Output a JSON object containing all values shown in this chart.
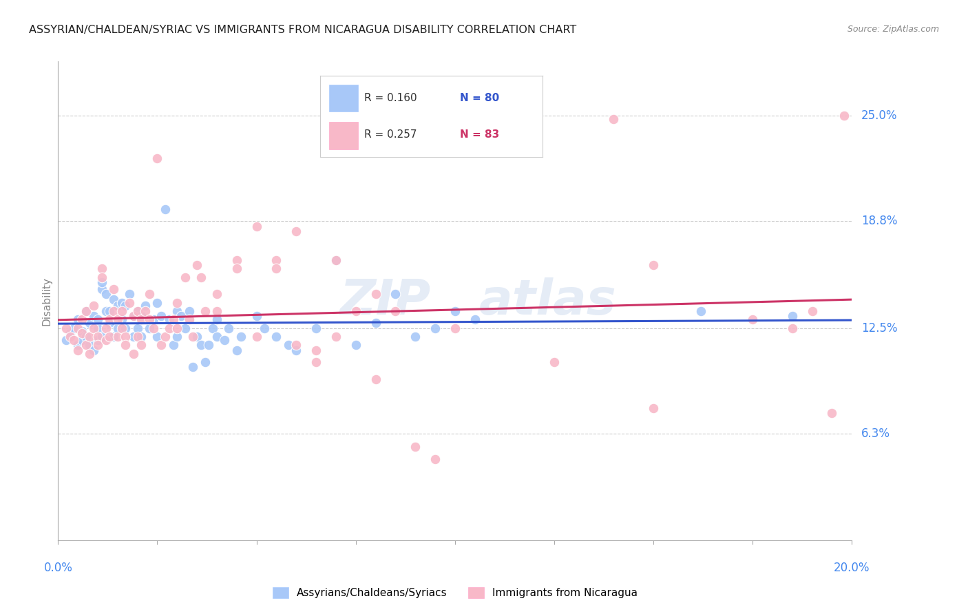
{
  "title": "ASSYRIAN/CHALDEAN/SYRIAC VS IMMIGRANTS FROM NICARAGUA DISABILITY CORRELATION CHART",
  "source": "Source: ZipAtlas.com",
  "ylabel": "Disability",
  "xlim": [
    0.0,
    20.0
  ],
  "ylim": [
    0.0,
    28.2
  ],
  "ytick_values": [
    6.3,
    12.5,
    18.8,
    25.0
  ],
  "ytick_labels": [
    "6.3%",
    "12.5%",
    "18.8%",
    "25.0%"
  ],
  "xtick_values": [
    0.0,
    2.5,
    5.0,
    7.5,
    10.0,
    12.5,
    15.0,
    17.5,
    20.0
  ],
  "blue_color": "#a8c8f8",
  "pink_color": "#f8b8c8",
  "blue_line_color": "#3355cc",
  "pink_line_color": "#cc3366",
  "legend_R_blue": "R = 0.160",
  "legend_N_blue": "N = 80",
  "legend_R_pink": "R = 0.257",
  "legend_N_pink": "N = 83",
  "legend_label_blue": "Assyrians/Chaldeans/Syriacs",
  "legend_label_pink": "Immigrants from Nicaragua",
  "watermark_zip": "ZIP",
  "watermark_atlas": "atlas",
  "blue_scatter": [
    [
      0.2,
      11.8
    ],
    [
      0.3,
      12.2
    ],
    [
      0.4,
      12.5
    ],
    [
      0.5,
      11.5
    ],
    [
      0.5,
      13.0
    ],
    [
      0.6,
      11.8
    ],
    [
      0.6,
      12.3
    ],
    [
      0.7,
      12.0
    ],
    [
      0.7,
      13.5
    ],
    [
      0.8,
      11.5
    ],
    [
      0.8,
      12.8
    ],
    [
      0.9,
      13.2
    ],
    [
      0.9,
      11.2
    ],
    [
      1.0,
      12.5
    ],
    [
      1.0,
      11.8
    ],
    [
      1.0,
      13.0
    ],
    [
      1.1,
      14.8
    ],
    [
      1.1,
      15.2
    ],
    [
      1.1,
      12.0
    ],
    [
      1.2,
      13.5
    ],
    [
      1.2,
      14.5
    ],
    [
      1.3,
      12.8
    ],
    [
      1.3,
      13.5
    ],
    [
      1.4,
      12.0
    ],
    [
      1.4,
      14.2
    ],
    [
      1.5,
      13.8
    ],
    [
      1.5,
      12.5
    ],
    [
      1.6,
      14.0
    ],
    [
      1.6,
      13.0
    ],
    [
      1.7,
      12.5
    ],
    [
      1.7,
      13.8
    ],
    [
      1.8,
      14.5
    ],
    [
      1.9,
      13.2
    ],
    [
      1.9,
      12.0
    ],
    [
      2.0,
      13.5
    ],
    [
      2.0,
      12.5
    ],
    [
      2.1,
      13.2
    ],
    [
      2.1,
      12.0
    ],
    [
      2.2,
      13.8
    ],
    [
      2.3,
      12.5
    ],
    [
      2.4,
      13.0
    ],
    [
      2.5,
      12.0
    ],
    [
      2.5,
      14.0
    ],
    [
      2.6,
      13.2
    ],
    [
      2.7,
      19.5
    ],
    [
      2.8,
      13.0
    ],
    [
      2.9,
      11.5
    ],
    [
      3.0,
      13.5
    ],
    [
      3.0,
      12.0
    ],
    [
      3.1,
      13.2
    ],
    [
      3.2,
      12.5
    ],
    [
      3.3,
      13.5
    ],
    [
      3.4,
      10.2
    ],
    [
      3.5,
      12.0
    ],
    [
      3.6,
      11.5
    ],
    [
      3.7,
      10.5
    ],
    [
      3.8,
      11.5
    ],
    [
      3.9,
      12.5
    ],
    [
      4.0,
      13.0
    ],
    [
      4.0,
      12.0
    ],
    [
      4.2,
      11.8
    ],
    [
      4.3,
      12.5
    ],
    [
      4.5,
      11.2
    ],
    [
      4.6,
      12.0
    ],
    [
      5.0,
      13.2
    ],
    [
      5.2,
      12.5
    ],
    [
      5.5,
      12.0
    ],
    [
      5.8,
      11.5
    ],
    [
      6.0,
      11.2
    ],
    [
      6.5,
      12.5
    ],
    [
      7.0,
      16.5
    ],
    [
      7.5,
      11.5
    ],
    [
      8.0,
      12.8
    ],
    [
      8.5,
      14.5
    ],
    [
      9.0,
      12.0
    ],
    [
      9.5,
      12.5
    ],
    [
      10.0,
      13.5
    ],
    [
      10.5,
      13.0
    ],
    [
      16.2,
      13.5
    ],
    [
      18.5,
      13.2
    ]
  ],
  "pink_scatter": [
    [
      0.2,
      12.5
    ],
    [
      0.3,
      12.0
    ],
    [
      0.4,
      11.8
    ],
    [
      0.5,
      12.5
    ],
    [
      0.5,
      11.2
    ],
    [
      0.6,
      13.0
    ],
    [
      0.6,
      12.2
    ],
    [
      0.7,
      11.5
    ],
    [
      0.7,
      13.5
    ],
    [
      0.8,
      12.0
    ],
    [
      0.8,
      11.0
    ],
    [
      0.9,
      13.8
    ],
    [
      0.9,
      12.5
    ],
    [
      1.0,
      12.0
    ],
    [
      1.0,
      11.5
    ],
    [
      1.1,
      16.0
    ],
    [
      1.1,
      15.5
    ],
    [
      1.2,
      12.5
    ],
    [
      1.2,
      11.8
    ],
    [
      1.3,
      13.0
    ],
    [
      1.3,
      12.0
    ],
    [
      1.4,
      14.8
    ],
    [
      1.4,
      13.5
    ],
    [
      1.5,
      13.0
    ],
    [
      1.5,
      12.0
    ],
    [
      1.6,
      13.5
    ],
    [
      1.6,
      12.5
    ],
    [
      1.7,
      12.0
    ],
    [
      1.7,
      11.5
    ],
    [
      1.8,
      14.0
    ],
    [
      1.9,
      13.2
    ],
    [
      1.9,
      11.0
    ],
    [
      2.0,
      13.5
    ],
    [
      2.0,
      12.0
    ],
    [
      2.1,
      11.5
    ],
    [
      2.1,
      13.0
    ],
    [
      2.2,
      13.5
    ],
    [
      2.3,
      14.5
    ],
    [
      2.3,
      13.0
    ],
    [
      2.4,
      12.5
    ],
    [
      2.5,
      22.5
    ],
    [
      2.6,
      11.5
    ],
    [
      2.7,
      12.0
    ],
    [
      2.8,
      12.5
    ],
    [
      2.9,
      13.0
    ],
    [
      3.0,
      14.0
    ],
    [
      3.0,
      12.5
    ],
    [
      3.2,
      15.5
    ],
    [
      3.3,
      13.0
    ],
    [
      3.4,
      12.0
    ],
    [
      3.5,
      16.2
    ],
    [
      3.6,
      15.5
    ],
    [
      3.7,
      13.5
    ],
    [
      4.0,
      14.5
    ],
    [
      4.0,
      13.5
    ],
    [
      4.5,
      16.5
    ],
    [
      4.5,
      16.0
    ],
    [
      5.0,
      18.5
    ],
    [
      5.0,
      12.0
    ],
    [
      5.5,
      16.5
    ],
    [
      5.5,
      16.0
    ],
    [
      6.0,
      18.2
    ],
    [
      6.0,
      11.5
    ],
    [
      6.5,
      11.2
    ],
    [
      6.5,
      10.5
    ],
    [
      7.0,
      16.5
    ],
    [
      7.0,
      12.0
    ],
    [
      7.5,
      13.5
    ],
    [
      8.0,
      14.5
    ],
    [
      8.0,
      9.5
    ],
    [
      8.5,
      13.5
    ],
    [
      9.0,
      5.5
    ],
    [
      9.5,
      4.8
    ],
    [
      10.0,
      12.5
    ],
    [
      12.5,
      10.5
    ],
    [
      14.0,
      24.8
    ],
    [
      15.0,
      16.2
    ],
    [
      15.0,
      7.8
    ],
    [
      17.5,
      13.0
    ],
    [
      18.5,
      12.5
    ],
    [
      19.0,
      13.5
    ],
    [
      19.5,
      7.5
    ],
    [
      19.8,
      25.0
    ]
  ]
}
